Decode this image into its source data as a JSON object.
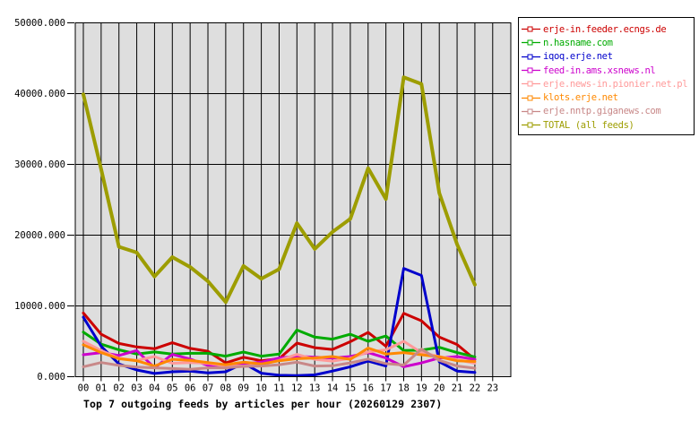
{
  "chart_data": {
    "type": "line",
    "title": "Top 7 outgoing feeds by articles per hour (20260129 2307)",
    "xlabel": "",
    "ylabel": "",
    "ylim": [
      0,
      50000
    ],
    "grid": true,
    "plot_background": "#dedede",
    "axis_color": "#000000",
    "legend_position": "top-right outside plot",
    "x_tick_labels": [
      "00",
      "01",
      "02",
      "03",
      "04",
      "05",
      "06",
      "07",
      "08",
      "09",
      "10",
      "11",
      "12",
      "13",
      "14",
      "15",
      "16",
      "17",
      "18",
      "19",
      "20",
      "21",
      "22",
      "23"
    ],
    "y_tick_labels": [
      "0.000",
      "10000.000",
      "20000.000",
      "30000.000",
      "40000.000",
      "50000.000"
    ],
    "y_tick_values": [
      0,
      10000,
      20000,
      30000,
      40000,
      50000
    ],
    "series": [
      {
        "name": "erje-in.feeder.ecngs.de",
        "color": "#cc0000",
        "values": [
          9000,
          6000,
          4700,
          4200,
          3950,
          4800,
          4000,
          3600,
          1950,
          2750,
          2250,
          2550,
          4750,
          4100,
          3850,
          4950,
          6250,
          4300,
          8950,
          7900,
          5600,
          4550,
          2450
        ]
      },
      {
        "name": "n.hasname.com",
        "color": "#00ab00",
        "values": [
          6300,
          4600,
          3800,
          3200,
          3500,
          3200,
          3300,
          3300,
          2900,
          3500,
          2900,
          3200,
          6600,
          5600,
          5300,
          6000,
          5000,
          5750,
          3700,
          3750,
          4150,
          3400,
          2800
        ]
      },
      {
        "name": "iqoq.erje.net",
        "color": "#0000cc",
        "values": [
          8400,
          4300,
          1800,
          950,
          450,
          700,
          800,
          550,
          700,
          1900,
          500,
          200,
          150,
          250,
          800,
          1400,
          2200,
          1500,
          15300,
          14300,
          2100,
          800,
          600
        ]
      },
      {
        "name": "feed-in.ams.xsnews.nl",
        "color": "#cc00cc",
        "values": [
          3100,
          3400,
          3000,
          3700,
          1250,
          3150,
          2500,
          1600,
          1400,
          1800,
          2050,
          2650,
          2900,
          2750,
          2650,
          2850,
          3400,
          2650,
          1400,
          1950,
          2650,
          2850,
          2450
        ]
      },
      {
        "name": "erje.news-in.pionier.net.pl",
        "color": "#ff9999",
        "values": [
          5000,
          3700,
          2600,
          2300,
          2850,
          1900,
          2000,
          1900,
          1500,
          1500,
          1700,
          2300,
          3150,
          2450,
          2200,
          2600,
          3500,
          3800,
          5000,
          3400,
          2850,
          2400,
          1900
        ]
      },
      {
        "name": "klots.erje.net",
        "color": "#ff8800",
        "values": [
          4500,
          3400,
          2550,
          2250,
          1500,
          2450,
          2300,
          2000,
          1700,
          2050,
          1800,
          2250,
          2550,
          2650,
          2850,
          2450,
          4050,
          3200,
          3400,
          3100,
          2800,
          2250,
          2150
        ]
      },
      {
        "name": "erje.nntp.giganews.com",
        "color": "#c88888",
        "values": [
          1400,
          2000,
          1600,
          1350,
          1250,
          1150,
          1050,
          1250,
          1250,
          1450,
          1500,
          1700,
          2050,
          1500,
          1550,
          1950,
          2500,
          1850,
          1650,
          3900,
          2300,
          1500,
          1200
        ]
      },
      {
        "name": "TOTAL (all feeds)",
        "color": "#9d9d00",
        "values": [
          39900,
          29300,
          18350,
          17550,
          14150,
          16900,
          15500,
          13500,
          10550,
          15650,
          13850,
          15200,
          21700,
          18050,
          20450,
          22300,
          29450,
          25100,
          42300,
          41350,
          25950,
          18700,
          13000
        ]
      }
    ]
  }
}
